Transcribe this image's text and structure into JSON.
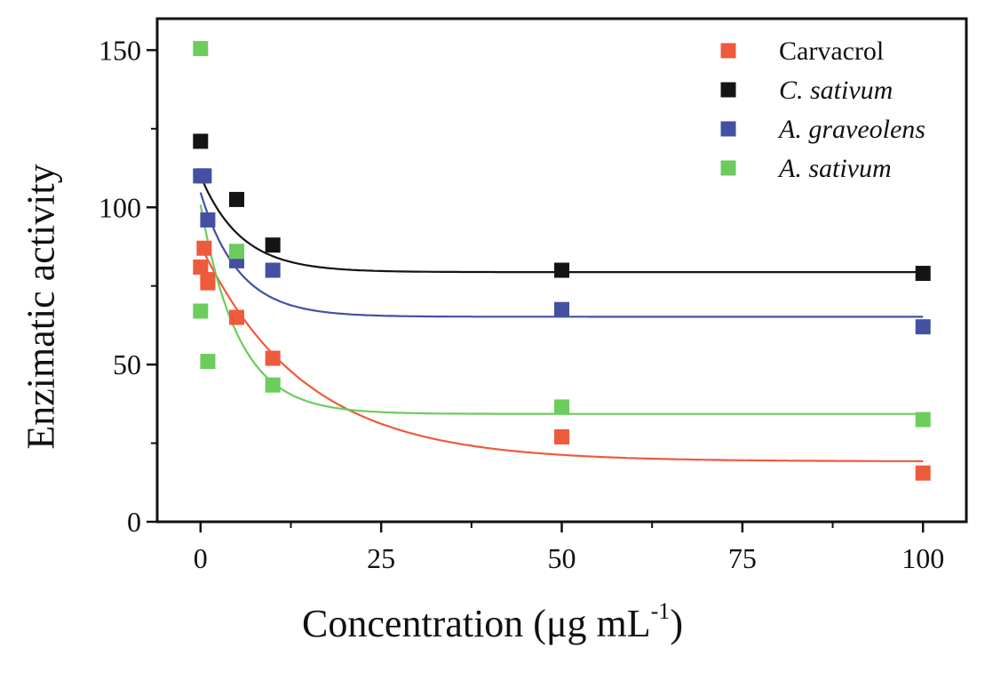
{
  "chart_data": {
    "type": "scatter",
    "title": "",
    "xlabel_main": "Concentration (μg mL",
    "xlabel_sup": "-1",
    "xlabel_close": ")",
    "ylabel": "Enzimatic activity",
    "xlim": [
      -6,
      106
    ],
    "ylim": [
      0,
      160
    ],
    "xticks": [
      0,
      25,
      50,
      75,
      100
    ],
    "yticks": [
      0,
      50,
      100,
      150
    ],
    "grid": false,
    "legend_position": "top-right",
    "series": [
      {
        "name": "Carvacrol",
        "color": "#ee5a3c",
        "italic": false,
        "points": [
          [
            0,
            81
          ],
          [
            0.5,
            87
          ],
          [
            1,
            77
          ],
          [
            1,
            76
          ],
          [
            5,
            65
          ],
          [
            10,
            52
          ],
          [
            50,
            27
          ],
          [
            100,
            15.5
          ]
        ],
        "fit": {
          "y0": 19.2,
          "A": 68.8,
          "k": 0.07
        }
      },
      {
        "name": "C. sativum",
        "color": "#141414",
        "italic": true,
        "points": [
          [
            0,
            121
          ],
          [
            5,
            102.5
          ],
          [
            10,
            88
          ],
          [
            50,
            80
          ],
          [
            100,
            79
          ]
        ],
        "fit": {
          "y0": 79.4,
          "A": 30.6,
          "k": 0.18
        }
      },
      {
        "name": "A. graveolens",
        "color": "#4450a2",
        "italic": true,
        "points": [
          [
            0,
            110
          ],
          [
            0.5,
            110
          ],
          [
            1,
            96
          ],
          [
            5,
            83
          ],
          [
            10,
            80
          ],
          [
            50,
            67.5
          ],
          [
            100,
            62
          ]
        ],
        "fit": {
          "y0": 65.2,
          "A": 39.5,
          "k": 0.19
        }
      },
      {
        "name": "A. sativum",
        "color": "#6ccc5c",
        "italic": true,
        "points": [
          [
            0,
            150.5
          ],
          [
            0,
            67
          ],
          [
            1,
            51
          ],
          [
            5,
            86
          ],
          [
            10,
            43.5
          ],
          [
            50,
            36.5
          ],
          [
            100,
            32.5
          ]
        ],
        "fit": {
          "y0": 34.3,
          "A": 66.5,
          "k": 0.19
        }
      }
    ]
  }
}
